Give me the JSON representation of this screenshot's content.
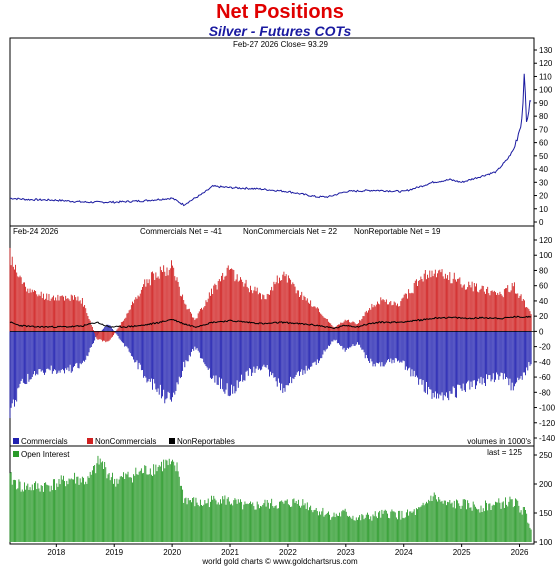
{
  "title": "Net Positions",
  "subtitle": "Silver - Futures COTs",
  "footer": "world gold charts © www.goldchartsrus.com",
  "chart_data": [
    {
      "type": "line",
      "panel": "price",
      "header": "Feb-27  2026   Close= 93.29",
      "color": "#1a1aa0",
      "ylim": [
        0,
        130
      ],
      "yticks": [
        0,
        10,
        20,
        30,
        40,
        50,
        60,
        70,
        80,
        90,
        100,
        110,
        120,
        130
      ],
      "x": [
        2017.2,
        2017.5,
        2018.0,
        2018.5,
        2019.0,
        2019.5,
        2020.0,
        2020.2,
        2020.55,
        2020.7,
        2021.0,
        2021.5,
        2022.0,
        2022.5,
        2022.7,
        2023.0,
        2023.5,
        2024.0,
        2024.3,
        2024.5,
        2024.8,
        2025.0,
        2025.3,
        2025.6,
        2025.8,
        2025.9,
        2026.0,
        2026.05,
        2026.08,
        2026.12,
        2026.16,
        2026.2
      ],
      "values": [
        18,
        17,
        16.5,
        15,
        15,
        16,
        18,
        13,
        22,
        27,
        26,
        25,
        23,
        19,
        19,
        23,
        24,
        23,
        27,
        30,
        32,
        30,
        34,
        38,
        48,
        55,
        70,
        80,
        115,
        75,
        85,
        93
      ]
    },
    {
      "type": "bar",
      "panel": "net",
      "header_date": "Feb-24  2026",
      "header_stats": [
        "Commercials Net = -41",
        "NonCommercials Net = 22",
        "NonReportable Net = 19"
      ],
      "ylim": [
        -140,
        120
      ],
      "yticks": [
        -140,
        -120,
        -100,
        -80,
        -60,
        -40,
        -20,
        0,
        20,
        40,
        60,
        80,
        100,
        120
      ],
      "legend": [
        "Commercials",
        "NonCommercials",
        "NonReportables"
      ],
      "legend_colors": [
        "#2020b0",
        "#d02020",
        "#000000"
      ],
      "note": "volumes in 1000's",
      "x": [
        2017.2,
        2017.35,
        2017.6,
        2017.9,
        2018.2,
        2018.45,
        2018.7,
        2018.9,
        2019.2,
        2019.5,
        2019.8,
        2020.0,
        2020.2,
        2020.4,
        2020.7,
        2021.0,
        2021.3,
        2021.6,
        2021.9,
        2022.2,
        2022.5,
        2022.8,
        2023.0,
        2023.2,
        2023.4,
        2023.6,
        2023.9,
        2024.2,
        2024.4,
        2024.6,
        2024.9,
        2025.1,
        2025.4,
        2025.7,
        2025.9,
        2026.2
      ],
      "series": [
        {
          "name": "Commercials",
          "values": [
            -110,
            -75,
            -55,
            -50,
            -50,
            -45,
            -5,
            10,
            -20,
            -55,
            -80,
            -95,
            -45,
            -20,
            -60,
            -80,
            -55,
            -45,
            -75,
            -55,
            -40,
            -10,
            -25,
            -15,
            -40,
            -45,
            -35,
            -60,
            -75,
            -85,
            -80,
            -70,
            -65,
            -55,
            -75,
            -41
          ]
        },
        {
          "name": "NonCommercials",
          "values": [
            100,
            70,
            50,
            45,
            45,
            40,
            -10,
            -15,
            20,
            60,
            80,
            85,
            40,
            15,
            55,
            80,
            60,
            45,
            75,
            50,
            30,
            5,
            15,
            10,
            30,
            40,
            35,
            60,
            75,
            75,
            70,
            60,
            55,
            50,
            60,
            22
          ]
        },
        {
          "name": "NonReportables",
          "values": [
            12,
            8,
            6,
            6,
            6,
            7,
            12,
            6,
            6,
            8,
            12,
            16,
            10,
            6,
            12,
            14,
            12,
            10,
            12,
            10,
            8,
            4,
            8,
            6,
            10,
            12,
            12,
            14,
            16,
            18,
            18,
            17,
            18,
            17,
            19,
            19
          ]
        }
      ]
    },
    {
      "type": "bar",
      "panel": "open_interest",
      "legend": [
        "Open Interest"
      ],
      "color": "#2a9a2a",
      "last_label": "last = 125",
      "ylim": [
        100,
        250
      ],
      "yticks": [
        100,
        150,
        200,
        250
      ],
      "x": [
        2017.2,
        2017.4,
        2017.7,
        2018.0,
        2018.3,
        2018.55,
        2018.75,
        2019.0,
        2019.3,
        2019.6,
        2019.9,
        2020.1,
        2020.2,
        2020.5,
        2020.8,
        2021.0,
        2021.3,
        2021.6,
        2021.9,
        2022.2,
        2022.5,
        2022.8,
        2023.0,
        2023.2,
        2023.5,
        2023.8,
        2024.0,
        2024.3,
        2024.5,
        2024.7,
        2025.0,
        2025.3,
        2025.6,
        2025.9,
        2026.1,
        2026.2
      ],
      "values": [
        210,
        195,
        195,
        200,
        210,
        205,
        240,
        205,
        215,
        225,
        235,
        225,
        175,
        165,
        175,
        170,
        160,
        165,
        165,
        170,
        155,
        145,
        150,
        140,
        145,
        150,
        145,
        155,
        180,
        165,
        165,
        160,
        165,
        170,
        150,
        125
      ]
    }
  ],
  "x_axis": {
    "labels": [
      "2018",
      "2019",
      "2020",
      "2021",
      "2022",
      "2023",
      "2024",
      "2025",
      "2026"
    ],
    "range": [
      2017.2,
      2026.25
    ]
  }
}
